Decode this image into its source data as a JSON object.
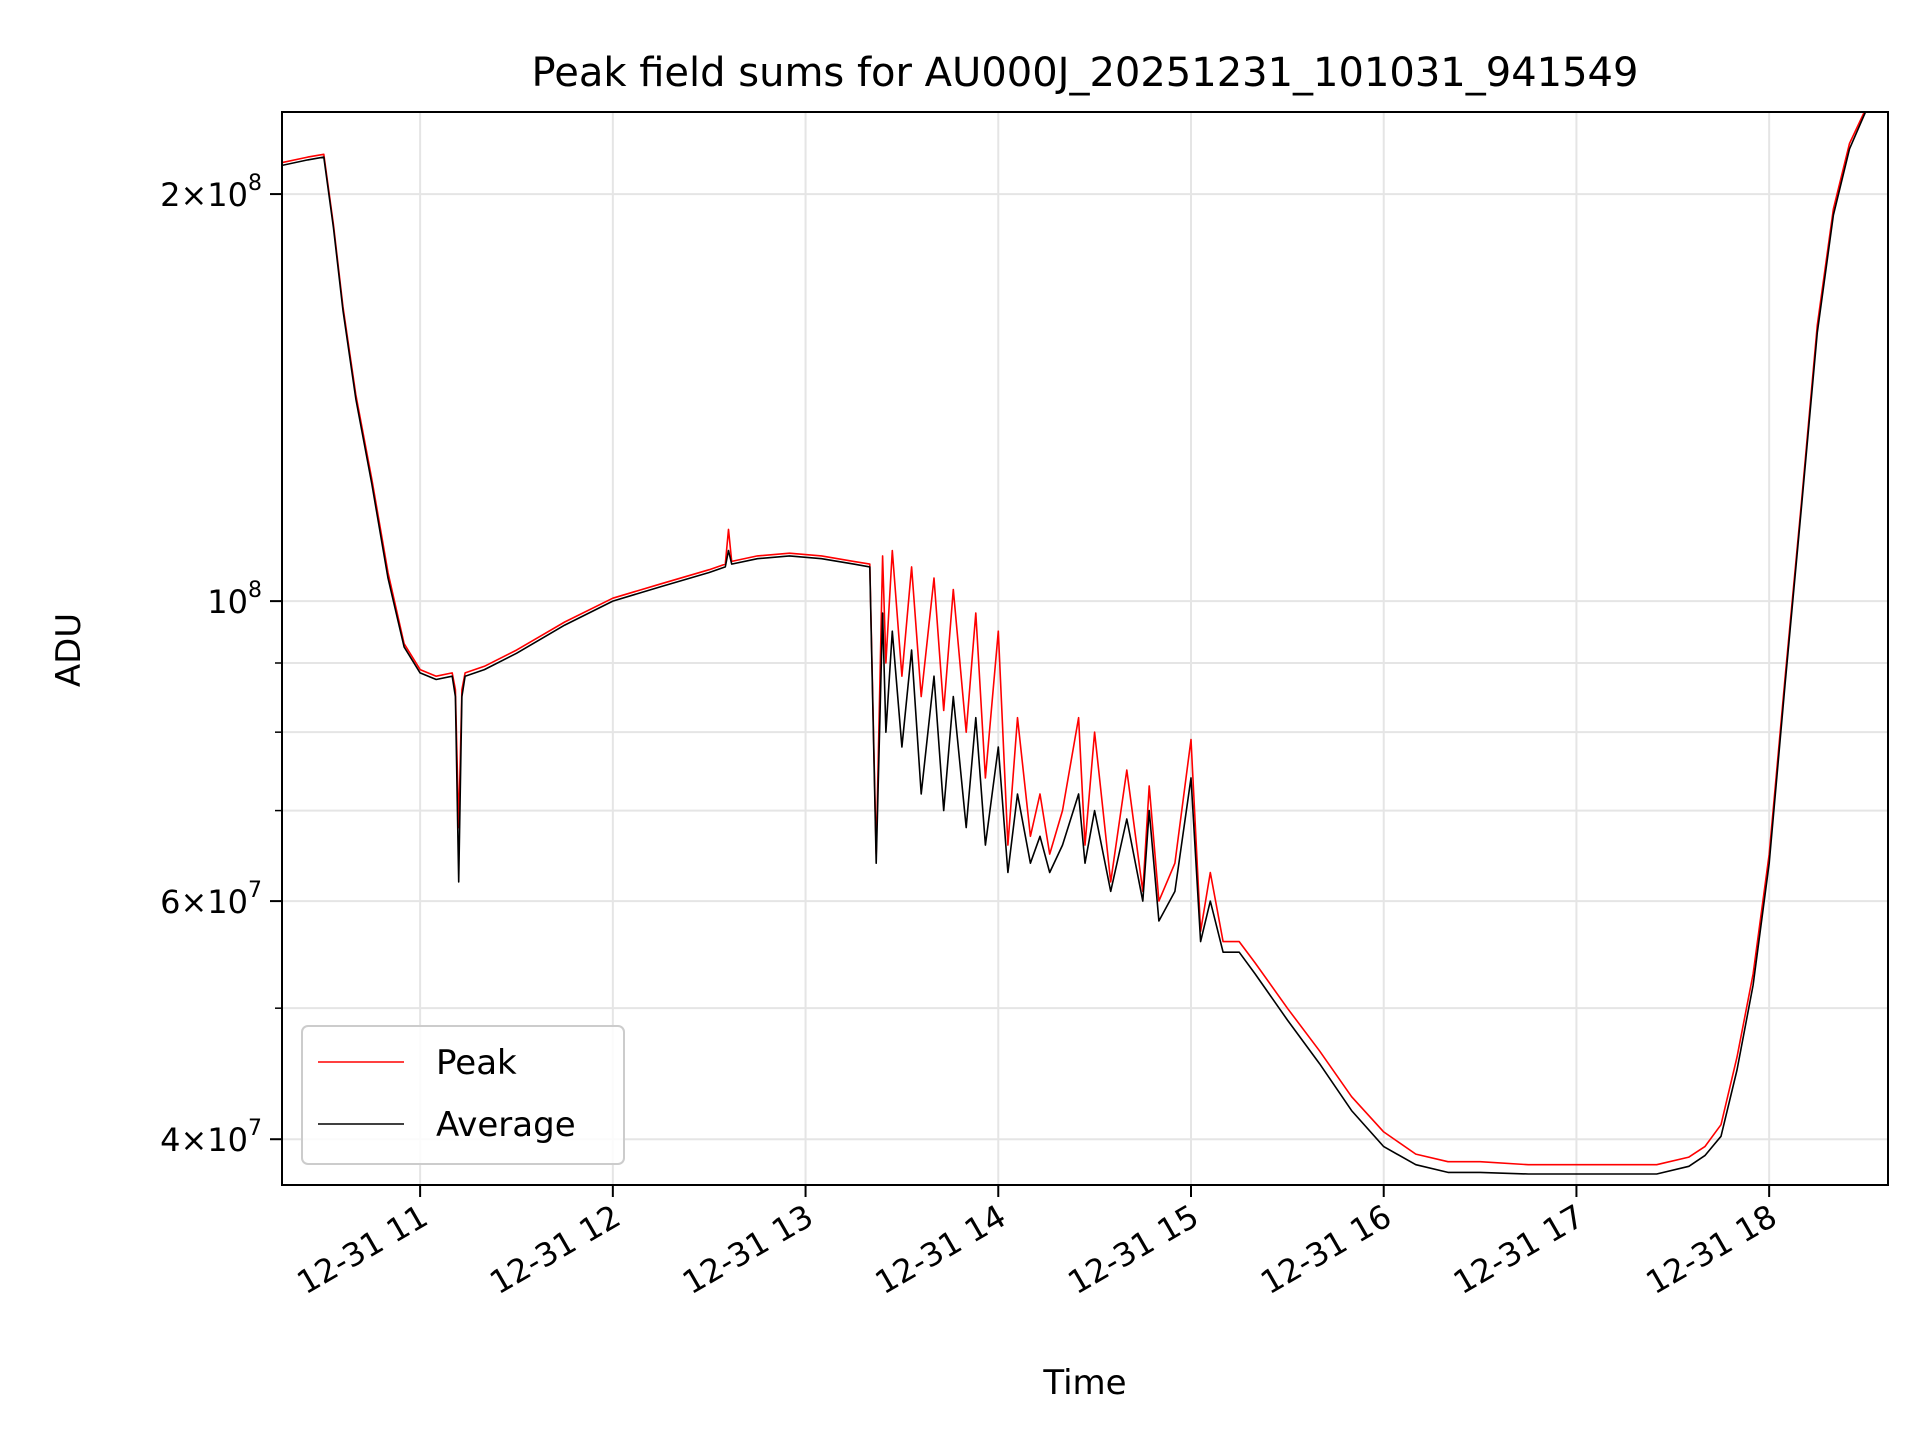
{
  "chart_data": {
    "type": "line",
    "title": "Peak field sums for AU000J_20251231_101031_941549",
    "xlabel": "Time",
    "ylabel": "ADU",
    "yscale": "log",
    "ylim": [
      37000000,
      230000000
    ],
    "xlim": [
      "12-31 10:17",
      "12-31 18:37"
    ],
    "grid": true,
    "legend_placement": "lower-left",
    "x_ticks": [
      "12-31 11",
      "12-31 12",
      "12-31 13",
      "12-31 14",
      "12-31 15",
      "12-31 16",
      "12-31 17",
      "12-31 18"
    ],
    "y_ticks": [
      {
        "value": 40000000,
        "base": "4",
        "exp": "7"
      },
      {
        "value": 60000000,
        "base": "6",
        "exp": "7"
      },
      {
        "value": 100000000,
        "base": "",
        "exp": "8"
      },
      {
        "value": 200000000,
        "base": "2",
        "exp": "8"
      }
    ],
    "y_minor_ticks": [
      50000000,
      70000000,
      80000000,
      90000000
    ],
    "series": [
      {
        "name": "Peak",
        "color": "#ff0000",
        "x": [
          "10:17",
          "10:25",
          "10:30",
          "10:33",
          "10:36",
          "10:40",
          "10:45",
          "10:50",
          "10:55",
          "11:00",
          "11:05",
          "11:10",
          "11:11",
          "11:12",
          "11:13",
          "11:14",
          "11:20",
          "11:30",
          "11:45",
          "12:00",
          "12:15",
          "12:30",
          "12:35",
          "12:36",
          "12:37",
          "12:45",
          "12:55",
          "13:05",
          "13:15",
          "13:20",
          "13:22",
          "13:24",
          "13:25",
          "13:27",
          "13:30",
          "13:33",
          "13:36",
          "13:40",
          "13:43",
          "13:46",
          "13:50",
          "13:53",
          "13:56",
          "14:00",
          "14:03",
          "14:06",
          "14:10",
          "14:13",
          "14:16",
          "14:20",
          "14:25",
          "14:27",
          "14:30",
          "14:35",
          "14:40",
          "14:45",
          "14:47",
          "14:50",
          "14:55",
          "15:00",
          "15:03",
          "15:06",
          "15:10",
          "15:15",
          "15:20",
          "15:30",
          "15:40",
          "15:50",
          "16:00",
          "16:10",
          "16:20",
          "16:30",
          "16:45",
          "17:00",
          "17:15",
          "17:25",
          "17:35",
          "17:40",
          "17:45",
          "17:50",
          "17:55",
          "18:00",
          "18:05",
          "18:10",
          "18:15",
          "18:20",
          "18:25",
          "18:30",
          "18:37"
        ],
        "values": [
          211000000,
          213000000,
          214000000,
          190000000,
          165000000,
          142000000,
          123000000,
          105000000,
          93000000,
          89000000,
          88000000,
          88500000,
          86000000,
          68000000,
          86000000,
          88500000,
          89500000,
          92000000,
          96500000,
          100500000,
          103000000,
          105500000,
          106500000,
          113000000,
          107000000,
          108000000,
          108500000,
          108000000,
          107000000,
          106500000,
          65000000,
          108000000,
          90000000,
          109000000,
          88000000,
          106000000,
          85000000,
          104000000,
          83000000,
          102000000,
          80000000,
          98000000,
          74000000,
          95000000,
          66000000,
          82000000,
          67000000,
          72000000,
          65000000,
          70000000,
          82000000,
          66000000,
          80000000,
          62000000,
          75000000,
          61000000,
          73000000,
          60000000,
          64000000,
          79000000,
          57000000,
          63000000,
          56000000,
          56000000,
          54000000,
          50000000,
          46500000,
          43000000,
          40500000,
          39000000,
          38500000,
          38500000,
          38300000,
          38300000,
          38300000,
          38300000,
          38800000,
          39500000,
          41000000,
          46000000,
          53000000,
          65000000,
          88000000,
          118000000,
          160000000,
          195000000,
          218000000,
          231000000,
          231000000
        ]
      },
      {
        "name": "Average",
        "color": "#000000",
        "x": [
          "10:17",
          "10:25",
          "10:30",
          "10:33",
          "10:36",
          "10:40",
          "10:45",
          "10:50",
          "10:55",
          "11:00",
          "11:05",
          "11:10",
          "11:11",
          "11:12",
          "11:13",
          "11:14",
          "11:20",
          "11:30",
          "11:45",
          "12:00",
          "12:15",
          "12:30",
          "12:35",
          "12:36",
          "12:37",
          "12:45",
          "12:55",
          "13:05",
          "13:15",
          "13:20",
          "13:22",
          "13:24",
          "13:25",
          "13:27",
          "13:30",
          "13:33",
          "13:36",
          "13:40",
          "13:43",
          "13:46",
          "13:50",
          "13:53",
          "13:56",
          "14:00",
          "14:03",
          "14:06",
          "14:10",
          "14:13",
          "14:16",
          "14:20",
          "14:25",
          "14:27",
          "14:30",
          "14:35",
          "14:40",
          "14:45",
          "14:47",
          "14:50",
          "14:55",
          "15:00",
          "15:03",
          "15:06",
          "15:10",
          "15:15",
          "15:20",
          "15:30",
          "15:40",
          "15:50",
          "16:00",
          "16:10",
          "16:20",
          "16:30",
          "16:45",
          "17:00",
          "17:15",
          "17:25",
          "17:35",
          "17:40",
          "17:45",
          "17:50",
          "17:55",
          "18:00",
          "18:05",
          "18:10",
          "18:15",
          "18:20",
          "18:25",
          "18:30",
          "18:37"
        ],
        "values": [
          210000000,
          212000000,
          213000000,
          189000000,
          164000000,
          141000000,
          122000000,
          104000000,
          92500000,
          88500000,
          87500000,
          88000000,
          85000000,
          62000000,
          85000000,
          88000000,
          89000000,
          91500000,
          96000000,
          100000000,
          102500000,
          105000000,
          106000000,
          109000000,
          106500000,
          107500000,
          108000000,
          107500000,
          106500000,
          106000000,
          64000000,
          98000000,
          80000000,
          95000000,
          78000000,
          92000000,
          72000000,
          88000000,
          70000000,
          85000000,
          68000000,
          82000000,
          66000000,
          78000000,
          63000000,
          72000000,
          64000000,
          67000000,
          63000000,
          66000000,
          72000000,
          64000000,
          70000000,
          61000000,
          69000000,
          60000000,
          70000000,
          58000000,
          61000000,
          74000000,
          56000000,
          60000000,
          55000000,
          55000000,
          53000000,
          49000000,
          45500000,
          42000000,
          39500000,
          38300000,
          37800000,
          37800000,
          37700000,
          37700000,
          37700000,
          37700000,
          38200000,
          38900000,
          40200000,
          45000000,
          52000000,
          64000000,
          87000000,
          117000000,
          158000000,
          193000000,
          216000000,
          230000000,
          230000000
        ]
      }
    ]
  }
}
